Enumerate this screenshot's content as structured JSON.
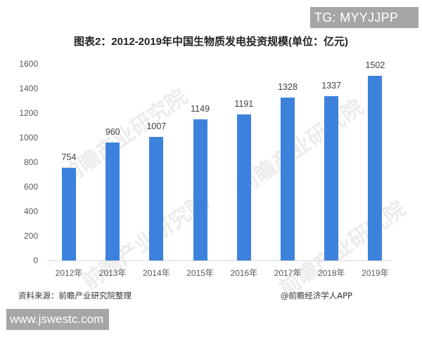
{
  "badges": {
    "top_right": "TG: MYYJJPP",
    "bottom_left": "www.jswestc.com"
  },
  "chart_data": {
    "type": "bar",
    "title": "图表2：2012-2019年中国生物质发电投资规模(单位：亿元)",
    "xlabel": "",
    "ylabel": "",
    "categories": [
      "2012年",
      "2013年",
      "2014年",
      "2015年",
      "2016年",
      "2017年",
      "2018年",
      "2019年"
    ],
    "values": [
      754,
      960,
      1007,
      1149,
      1191,
      1328,
      1337,
      1502
    ],
    "data_labels": [
      "754",
      "960",
      "1007",
      "1149",
      "1191",
      "1328",
      "1337",
      "1502"
    ],
    "ylim": [
      0,
      1600
    ],
    "yticks": [
      "0",
      "200",
      "400",
      "600",
      "800",
      "1000",
      "1200",
      "1400",
      "1600"
    ],
    "grid": false,
    "legend": null,
    "bar_color": "#3c82dc"
  },
  "footer": {
    "source": "资料来源：前瞻产业研究院整理",
    "credit": "@前瞻经济学人APP"
  },
  "watermark": "前瞻产业研究院"
}
